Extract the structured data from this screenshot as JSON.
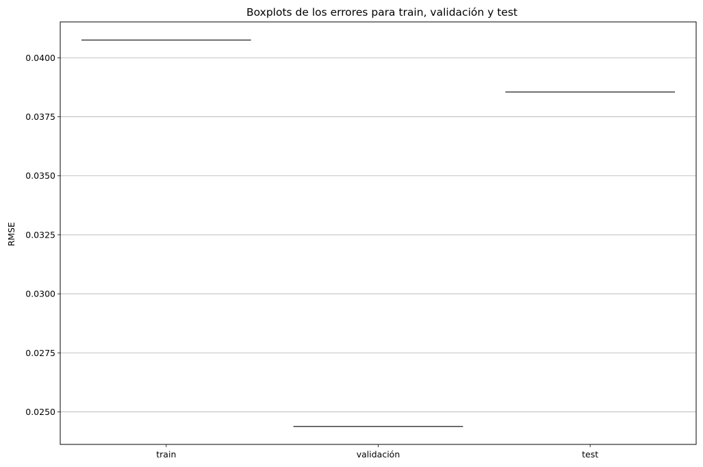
{
  "chart_data": {
    "type": "box",
    "title": "Boxplots de los errores para train, validación y test",
    "xlabel": "",
    "ylabel": "RMSE",
    "categories": [
      "train",
      "validación",
      "test"
    ],
    "values": [
      0.04075,
      0.02438,
      0.03855
    ],
    "yticks": [
      0.025,
      0.0275,
      0.03,
      0.0325,
      0.035,
      0.0375,
      0.04
    ],
    "ytick_labels": [
      "0.0250",
      "0.0275",
      "0.0300",
      "0.0325",
      "0.0350",
      "0.0375",
      "0.0400"
    ],
    "ylim": [
      0.02362,
      0.04152
    ],
    "grid": "horizontal",
    "colors": {
      "box_line": "#3f3f3f",
      "grid": "#b0b0b0",
      "axis": "#000000"
    }
  }
}
